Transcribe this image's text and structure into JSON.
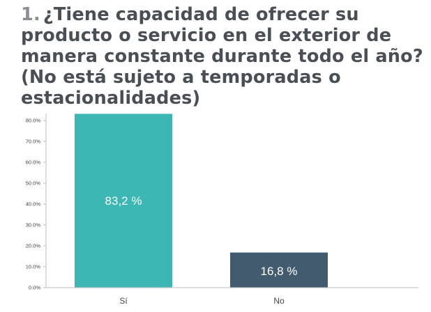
{
  "question": {
    "number": "1.",
    "text": "¿Tiene capacidad de ofrecer su producto o servicio en el exterior de manera constante durante todo el año? (No está sujeto a temporadas o estacionalidades)"
  },
  "colors": {
    "bar_si": "#3db7b4",
    "bar_no": "#435b6e",
    "axis": "#bdbdbd",
    "tick_text": "#444444",
    "title": "#4a4f55"
  },
  "chart_data": {
    "type": "bar",
    "categories": [
      "Sí",
      "No"
    ],
    "values": [
      83.2,
      16.8
    ],
    "data_labels": [
      "83,2 %",
      "16,8 %"
    ],
    "title": "",
    "xlabel": "",
    "ylabel": "",
    "ylim": [
      0,
      80
    ],
    "yticks": [
      0,
      10,
      20,
      30,
      40,
      50,
      60,
      70,
      80
    ],
    "ytick_labels": [
      "0.0%",
      "10.0%",
      "20.0%",
      "30.0%",
      "40.0%",
      "50.0%",
      "60.0%",
      "70.0%",
      "80.0%"
    ],
    "grid": false,
    "legend": "none"
  }
}
